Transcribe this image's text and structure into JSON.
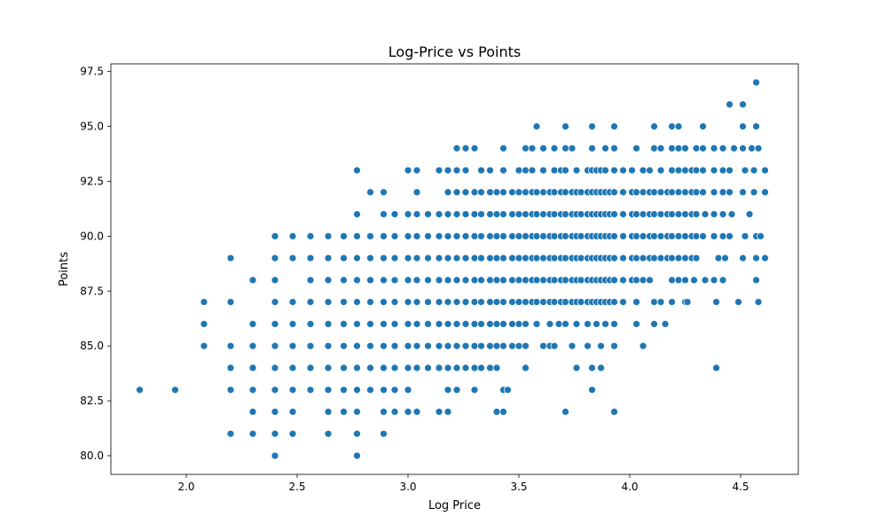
{
  "chart_data": {
    "type": "scatter",
    "title": "Log-Price vs Points",
    "xlabel": "Log Price",
    "ylabel": "Points",
    "xlim": [
      1.66,
      4.76
    ],
    "ylim": [
      79.15,
      97.85
    ],
    "xticks": [
      2.0,
      2.5,
      3.0,
      3.5,
      4.0,
      4.5
    ],
    "yticks": [
      80.0,
      82.5,
      85.0,
      87.5,
      90.0,
      92.5,
      95.0,
      97.5
    ],
    "xtick_labels": [
      "2.0",
      "2.5",
      "3.0",
      "3.5",
      "4.0",
      "4.5"
    ],
    "ytick_labels": [
      "80.0",
      "82.5",
      "85.0",
      "87.5",
      "90.0",
      "92.5",
      "95.0",
      "97.5"
    ],
    "grid": false,
    "marker_color": "#1f77b4",
    "points": {
      "80": [
        2.4,
        2.77
      ],
      "81": [
        2.2,
        2.3,
        2.4,
        2.48,
        2.64,
        2.77,
        2.89
      ],
      "82": [
        2.3,
        2.4,
        2.48,
        2.64,
        2.71,
        2.77,
        2.89,
        2.94,
        3.0,
        3.04,
        3.14,
        3.18,
        3.4,
        3.43,
        3.71,
        3.93
      ],
      "83": [
        1.79,
        1.95,
        2.2,
        2.3,
        2.4,
        2.48,
        2.56,
        2.64,
        2.71,
        2.77,
        2.83,
        2.89,
        2.94,
        3.0,
        3.18,
        3.22,
        3.3,
        3.43,
        3.45,
        3.83
      ],
      "84": [
        2.2,
        2.3,
        2.4,
        2.48,
        2.56,
        2.64,
        2.71,
        2.77,
        2.83,
        2.89,
        2.94,
        3.0,
        3.04,
        3.09,
        3.14,
        3.18,
        3.22,
        3.26,
        3.3,
        3.33,
        3.37,
        3.4,
        3.53,
        3.76,
        3.83,
        3.87,
        4.39
      ],
      "85": [
        2.08,
        2.2,
        2.3,
        2.4,
        2.48,
        2.56,
        2.64,
        2.71,
        2.77,
        2.83,
        2.89,
        2.94,
        3.0,
        3.04,
        3.09,
        3.14,
        3.18,
        3.22,
        3.26,
        3.3,
        3.33,
        3.37,
        3.4,
        3.43,
        3.47,
        3.5,
        3.53,
        3.61,
        3.64,
        3.66,
        3.74,
        3.81,
        3.87,
        3.93,
        4.06
      ],
      "86": [
        2.08,
        2.3,
        2.4,
        2.48,
        2.56,
        2.64,
        2.71,
        2.77,
        2.83,
        2.89,
        2.94,
        3.0,
        3.04,
        3.09,
        3.14,
        3.18,
        3.22,
        3.26,
        3.3,
        3.33,
        3.37,
        3.4,
        3.43,
        3.47,
        3.5,
        3.53,
        3.58,
        3.64,
        3.68,
        3.71,
        3.76,
        3.81,
        3.85,
        3.89,
        3.93,
        4.03,
        4.11,
        4.16
      ],
      "87": [
        2.08,
        2.2,
        2.4,
        2.48,
        2.56,
        2.64,
        2.71,
        2.77,
        2.83,
        2.89,
        2.94,
        3.0,
        3.04,
        3.09,
        3.14,
        3.18,
        3.22,
        3.26,
        3.3,
        3.33,
        3.37,
        3.4,
        3.43,
        3.47,
        3.5,
        3.53,
        3.56,
        3.58,
        3.61,
        3.64,
        3.66,
        3.69,
        3.71,
        3.74,
        3.76,
        3.78,
        3.81,
        3.83,
        3.85,
        3.87,
        3.89,
        3.91,
        3.93,
        3.97,
        4.03,
        4.11,
        4.14,
        4.19,
        4.25,
        4.26,
        4.39,
        4.49,
        4.58
      ],
      "88": [
        2.3,
        2.4,
        2.56,
        2.64,
        2.71,
        2.77,
        2.83,
        2.89,
        2.94,
        3.0,
        3.04,
        3.09,
        3.14,
        3.18,
        3.22,
        3.26,
        3.3,
        3.33,
        3.37,
        3.4,
        3.43,
        3.47,
        3.5,
        3.53,
        3.56,
        3.58,
        3.61,
        3.64,
        3.66,
        3.69,
        3.71,
        3.74,
        3.76,
        3.78,
        3.81,
        3.83,
        3.85,
        3.87,
        3.89,
        3.91,
        3.93,
        3.97,
        4.01,
        4.03,
        4.06,
        4.09,
        4.19,
        4.22,
        4.25,
        4.29,
        4.34,
        4.38,
        4.42,
        4.57
      ],
      "89": [
        2.2,
        2.4,
        2.48,
        2.56,
        2.64,
        2.71,
        2.77,
        2.83,
        2.89,
        2.94,
        3.0,
        3.04,
        3.09,
        3.14,
        3.18,
        3.22,
        3.26,
        3.3,
        3.33,
        3.37,
        3.4,
        3.43,
        3.47,
        3.5,
        3.53,
        3.56,
        3.58,
        3.61,
        3.64,
        3.66,
        3.69,
        3.71,
        3.74,
        3.76,
        3.78,
        3.81,
        3.83,
        3.85,
        3.87,
        3.89,
        3.91,
        3.93,
        3.97,
        4.01,
        4.03,
        4.06,
        4.09,
        4.11,
        4.14,
        4.17,
        4.19,
        4.22,
        4.25,
        4.28,
        4.3,
        4.4,
        4.43,
        4.51,
        4.57,
        4.61
      ],
      "90": [
        2.4,
        2.48,
        2.56,
        2.64,
        2.71,
        2.77,
        2.83,
        2.89,
        2.94,
        3.0,
        3.04,
        3.09,
        3.14,
        3.18,
        3.22,
        3.26,
        3.3,
        3.33,
        3.37,
        3.4,
        3.43,
        3.47,
        3.5,
        3.53,
        3.56,
        3.58,
        3.61,
        3.64,
        3.66,
        3.69,
        3.71,
        3.74,
        3.76,
        3.78,
        3.81,
        3.83,
        3.85,
        3.87,
        3.89,
        3.91,
        3.93,
        3.97,
        4.01,
        4.03,
        4.06,
        4.09,
        4.11,
        4.14,
        4.17,
        4.19,
        4.22,
        4.25,
        4.28,
        4.3,
        4.33,
        4.38,
        4.42,
        4.45,
        4.52,
        4.57,
        4.59
      ],
      "91": [
        2.77,
        2.89,
        2.94,
        3.0,
        3.04,
        3.09,
        3.14,
        3.18,
        3.22,
        3.26,
        3.3,
        3.33,
        3.37,
        3.4,
        3.43,
        3.47,
        3.5,
        3.53,
        3.56,
        3.58,
        3.61,
        3.64,
        3.66,
        3.69,
        3.71,
        3.74,
        3.76,
        3.78,
        3.81,
        3.83,
        3.85,
        3.87,
        3.89,
        3.91,
        3.93,
        3.97,
        4.01,
        4.03,
        4.06,
        4.09,
        4.11,
        4.14,
        4.17,
        4.19,
        4.22,
        4.25,
        4.28,
        4.3,
        4.34,
        4.38,
        4.42,
        4.46,
        4.54
      ],
      "92": [
        2.83,
        2.89,
        3.04,
        3.18,
        3.22,
        3.26,
        3.3,
        3.33,
        3.37,
        3.4,
        3.43,
        3.47,
        3.5,
        3.53,
        3.56,
        3.58,
        3.61,
        3.64,
        3.66,
        3.69,
        3.71,
        3.74,
        3.76,
        3.78,
        3.81,
        3.83,
        3.85,
        3.87,
        3.89,
        3.91,
        3.93,
        3.97,
        4.01,
        4.03,
        4.06,
        4.09,
        4.11,
        4.14,
        4.17,
        4.19,
        4.22,
        4.25,
        4.28,
        4.3,
        4.33,
        4.38,
        4.42,
        4.45,
        4.51,
        4.56,
        4.61
      ],
      "93": [
        2.77,
        3.0,
        3.04,
        3.14,
        3.18,
        3.22,
        3.26,
        3.33,
        3.37,
        3.43,
        3.5,
        3.53,
        3.56,
        3.61,
        3.66,
        3.69,
        3.71,
        3.76,
        3.81,
        3.83,
        3.85,
        3.87,
        3.89,
        3.93,
        3.97,
        4.01,
        4.06,
        4.09,
        4.14,
        4.19,
        4.22,
        4.25,
        4.28,
        4.3,
        4.33,
        4.38,
        4.42,
        4.45,
        4.52,
        4.56,
        4.61
      ],
      "94": [
        3.22,
        3.26,
        3.3,
        3.43,
        3.53,
        3.56,
        3.61,
        3.66,
        3.71,
        3.74,
        3.83,
        3.89,
        3.93,
        4.03,
        4.11,
        4.14,
        4.19,
        4.22,
        4.25,
        4.3,
        4.33,
        4.38,
        4.42,
        4.47,
        4.51,
        4.55,
        4.58
      ],
      "95": [
        3.58,
        3.71,
        3.83,
        3.93,
        4.11,
        4.19,
        4.22,
        4.33,
        4.51,
        4.57
      ],
      "96": [
        4.45,
        4.51
      ],
      "97": [
        4.57
      ]
    }
  }
}
